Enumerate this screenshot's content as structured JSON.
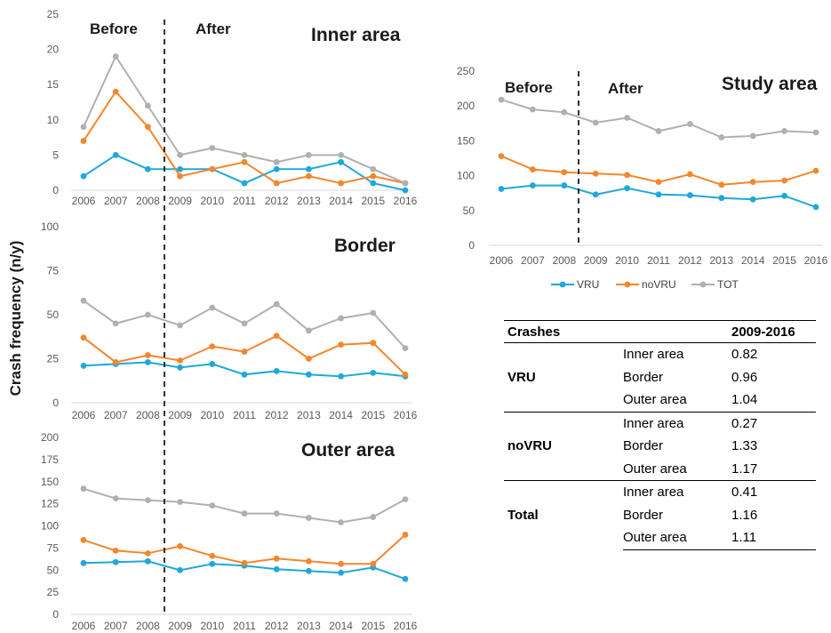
{
  "y_axis_title": "Crash frequency (n/y)",
  "phase_labels": {
    "before": "Before",
    "after": "After"
  },
  "colors": {
    "VRU": "#1fa8d9",
    "noVRU": "#f4862d",
    "TOT": "#b0b0b0"
  },
  "chart_data": [
    {
      "type": "line",
      "title": "Inner area",
      "x": [
        2006,
        2007,
        2008,
        2009,
        2010,
        2011,
        2012,
        2013,
        2014,
        2015,
        2016
      ],
      "ylim": [
        0,
        25
      ],
      "yticks": [
        0,
        5,
        10,
        15,
        20,
        25
      ],
      "series": [
        {
          "name": "VRU",
          "values": [
            2,
            5,
            3,
            3,
            3,
            1,
            3,
            3,
            4,
            1,
            0
          ]
        },
        {
          "name": "noVRU",
          "values": [
            7,
            14,
            9,
            2,
            3,
            4,
            1,
            2,
            1,
            2,
            1
          ]
        },
        {
          "name": "TOT",
          "values": [
            9,
            19,
            12,
            5,
            6,
            5,
            4,
            5,
            5,
            3,
            1
          ]
        }
      ]
    },
    {
      "type": "line",
      "title": "Border",
      "x": [
        2006,
        2007,
        2008,
        2009,
        2010,
        2011,
        2012,
        2013,
        2014,
        2015,
        2016
      ],
      "ylim": [
        0,
        100
      ],
      "yticks": [
        0,
        25,
        50,
        75,
        100
      ],
      "series": [
        {
          "name": "VRU",
          "values": [
            21,
            22,
            23,
            20,
            22,
            16,
            18,
            16,
            15,
            17,
            15
          ]
        },
        {
          "name": "noVRU",
          "values": [
            37,
            23,
            27,
            24,
            32,
            29,
            38,
            25,
            33,
            34,
            16
          ]
        },
        {
          "name": "TOT",
          "values": [
            58,
            45,
            50,
            44,
            54,
            45,
            56,
            41,
            48,
            51,
            31
          ]
        }
      ]
    },
    {
      "type": "line",
      "title": "Outer area",
      "x": [
        2006,
        2007,
        2008,
        2009,
        2010,
        2011,
        2012,
        2013,
        2014,
        2015,
        2016
      ],
      "ylim": [
        0,
        200
      ],
      "yticks": [
        0,
        25,
        50,
        75,
        100,
        125,
        150,
        175,
        200
      ],
      "series": [
        {
          "name": "VRU",
          "values": [
            58,
            59,
            60,
            50,
            57,
            55,
            51,
            49,
            47,
            53,
            40
          ]
        },
        {
          "name": "noVRU",
          "values": [
            84,
            72,
            69,
            77,
            66,
            58,
            63,
            60,
            57,
            57,
            90
          ]
        },
        {
          "name": "TOT",
          "values": [
            142,
            131,
            129,
            127,
            123,
            114,
            114,
            109,
            104,
            110,
            130
          ]
        }
      ]
    },
    {
      "type": "line",
      "title": "Study area",
      "x": [
        2006,
        2007,
        2008,
        2009,
        2010,
        2011,
        2012,
        2013,
        2014,
        2015,
        2016
      ],
      "ylim": [
        0,
        250
      ],
      "yticks": [
        0,
        50,
        100,
        150,
        200,
        250
      ],
      "legend": [
        "VRU",
        "noVRU",
        "TOT"
      ],
      "series": [
        {
          "name": "VRU",
          "values": [
            81,
            86,
            86,
            73,
            82,
            73,
            72,
            68,
            66,
            71,
            55
          ]
        },
        {
          "name": "noVRU",
          "values": [
            128,
            109,
            105,
            103,
            101,
            91,
            102,
            87,
            91,
            93,
            107
          ]
        },
        {
          "name": "TOT",
          "values": [
            209,
            195,
            191,
            176,
            183,
            164,
            174,
            155,
            157,
            164,
            162
          ]
        }
      ]
    },
    {
      "type": "table",
      "columns": [
        "Crashes",
        "",
        "2009-2016"
      ],
      "rows": [
        [
          "VRU",
          "Inner area",
          "0.82"
        ],
        [
          "",
          "Border",
          "0.96"
        ],
        [
          "",
          "Outer area",
          "1.04"
        ],
        [
          "noVRU",
          "Inner area",
          "0.27"
        ],
        [
          "",
          "Border",
          "1.33"
        ],
        [
          "",
          "Outer area",
          "1.17"
        ],
        [
          "Total",
          "Inner area",
          "0.41"
        ],
        [
          "",
          "Border",
          "1.16"
        ],
        [
          "",
          "Outer area",
          "1.11"
        ]
      ]
    }
  ]
}
